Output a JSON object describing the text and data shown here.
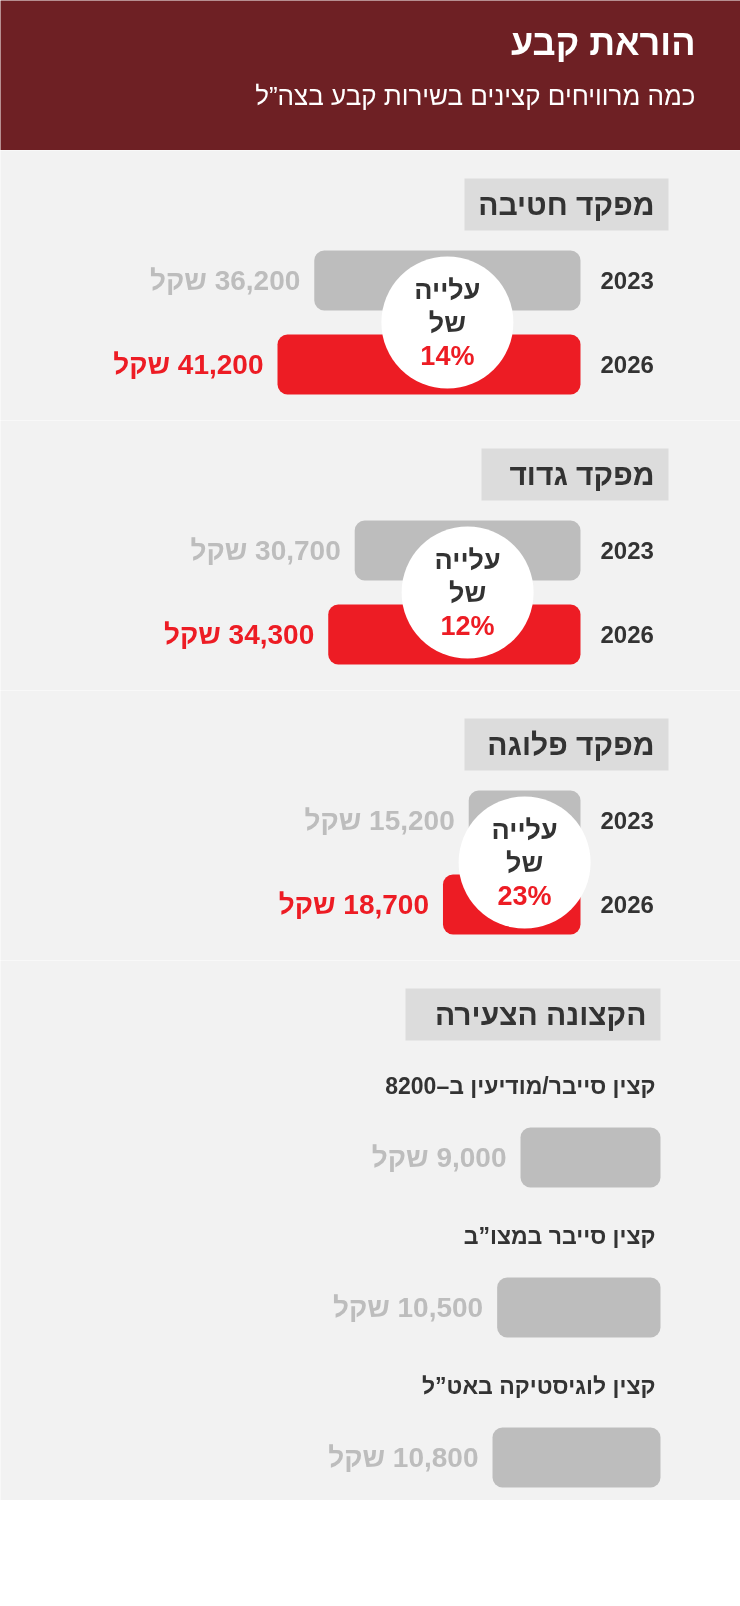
{
  "chart_data": [
    {
      "type": "other",
      "title": "הוראת קבע",
      "subtitle": "כמה מרוויחים קצינים בשירות קבע בצה”ל"
    },
    {
      "type": "bar",
      "orientation": "horizontal",
      "title": "מפקד חטיבה",
      "categories": [
        "2023",
        "2026"
      ],
      "values": [
        36200,
        41200
      ],
      "colors": [
        "#bdbdbd",
        "#ed1c24"
      ],
      "value_labels": [
        "36,200 שקל",
        "41,200 שקל"
      ],
      "annotations": [
        "עלייה של 14%"
      ]
    },
    {
      "type": "bar",
      "orientation": "horizontal",
      "title": "מפקד גדוד",
      "categories": [
        "2023",
        "2026"
      ],
      "values": [
        30700,
        34300
      ],
      "colors": [
        "#bdbdbd",
        "#ed1c24"
      ],
      "value_labels": [
        "30,700 שקל",
        "34,300 שקל"
      ],
      "annotations": [
        "עלייה של 12%"
      ]
    },
    {
      "type": "bar",
      "orientation": "horizontal",
      "title": "מפקד פלוגה",
      "categories": [
        "2023",
        "2026"
      ],
      "values": [
        15200,
        18700
      ],
      "colors": [
        "#bdbdbd",
        "#ed1c24"
      ],
      "value_labels": [
        "15,200 שקל",
        "18,700 שקל"
      ],
      "annotations": [
        "עלייה של 23%"
      ]
    },
    {
      "type": "bar",
      "orientation": "horizontal",
      "title": "הקצונה הצעירה",
      "categories": [
        "קצין סייבר/מודיעין ב–8200",
        "קצין סייבר במצו”ב",
        "קצין לוגיסטיקה באט”ל"
      ],
      "values": [
        9000,
        10500,
        10800
      ],
      "colors": [
        "#bdbdbd",
        "#bdbdbd",
        "#bdbdbd"
      ],
      "value_labels": [
        "9,000 שקל",
        "10,500 שקל",
        "10,800 שקל"
      ]
    }
  ]
}
